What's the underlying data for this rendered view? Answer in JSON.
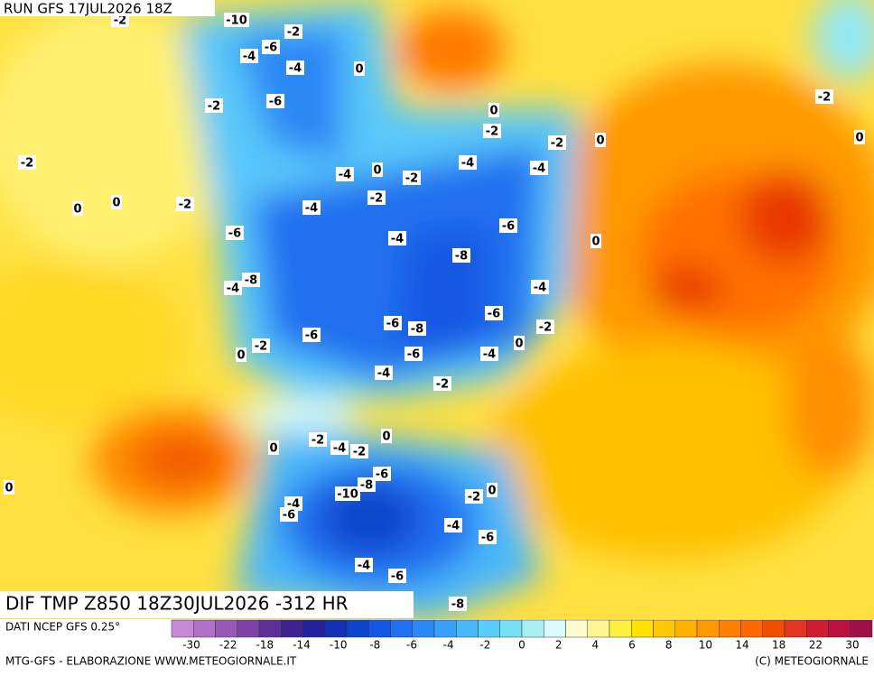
{
  "header": {
    "run": "RUN GFS 17JUL2026 18Z"
  },
  "map": {
    "title": "DIF TMP Z850 18Z30JUL2026 -312 HR",
    "contour_labels": [
      -10,
      -2,
      -2,
      -6,
      -4,
      -4,
      0,
      -6,
      -2,
      0,
      -2,
      -2,
      0,
      -2,
      -4,
      -4,
      0,
      -4,
      -2,
      -2,
      -2,
      0,
      0,
      -4,
      -6,
      -6,
      -4,
      0,
      -8,
      -8,
      -4,
      -4,
      -6,
      -6,
      -8,
      -2,
      -6,
      -2,
      0,
      0,
      -6,
      -4,
      -4,
      -2,
      0,
      -2,
      -4,
      -2,
      0,
      0,
      -6,
      -8,
      -10,
      -2,
      0,
      -4,
      -6,
      -4,
      -6,
      -4,
      -6,
      -8,
      -2,
      0
    ]
  },
  "colorbar": {
    "source": "DATI NCEP GFS 0.25°",
    "colors": [
      "#c888d8",
      "#b070c8",
      "#9858b8",
      "#7e42a6",
      "#602e96",
      "#3e2290",
      "#22209a",
      "#1430b4",
      "#0c44cc",
      "#1258e2",
      "#2070ef",
      "#2c88f5",
      "#38a0f8",
      "#48b8fa",
      "#5acdfa",
      "#78def6",
      "#a8eef2",
      "#d8fafa",
      "#fffbd0",
      "#fff590",
      "#fff040",
      "#ffe000",
      "#ffc800",
      "#ffb000",
      "#ff9800",
      "#ff8000",
      "#ff6800",
      "#f24e00",
      "#e23420",
      "#d01c30",
      "#b81040",
      "#a01048"
    ],
    "ticks": [
      -30,
      -22,
      -18,
      -14,
      -10,
      -8,
      -6,
      -4,
      -2,
      0,
      2,
      4,
      6,
      8,
      10,
      14,
      18,
      22,
      30
    ]
  },
  "footer": {
    "left": "MTG-GFS - ELABORAZIONE WWW.METEOGIORNALE.IT",
    "right": "(C) METEOGIORNALE"
  }
}
